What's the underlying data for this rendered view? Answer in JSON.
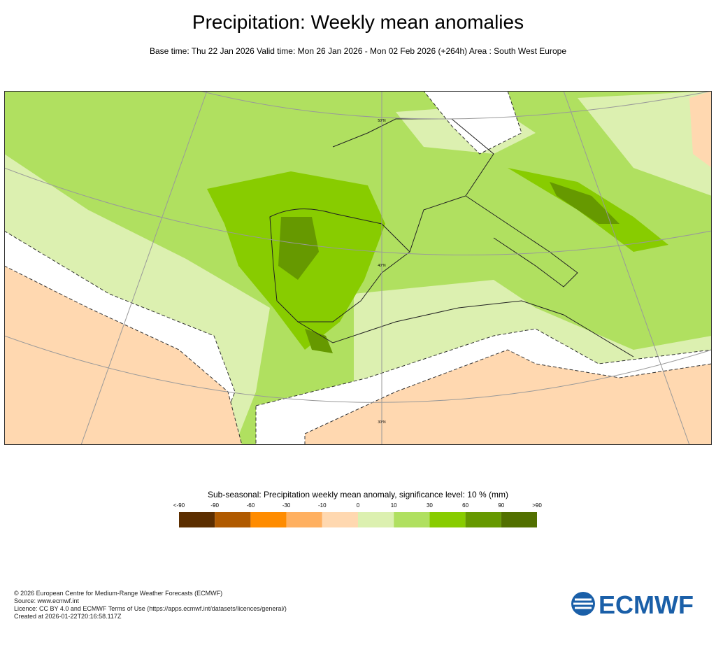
{
  "header": {
    "title": "Precipitation: Weekly mean anomalies",
    "subtitle": "Base time: Thu 22 Jan 2026 Valid time: Mon 26 Jan 2026 - Mon 02 Feb 2026 (+264h) Area : South West Europe"
  },
  "map": {
    "lat_labels": [
      "50°N",
      "40°N",
      "30°N"
    ]
  },
  "legend": {
    "title": "Sub-seasonal: Precipitation weekly mean anomaly, significance level: 10 % (mm)",
    "labels": [
      "<-90",
      "-90",
      "-60",
      "-30",
      "-10",
      "0",
      "10",
      "30",
      "60",
      "90",
      ">90"
    ],
    "colors": [
      "#5c2e00",
      "#b05a00",
      "#ff8c00",
      "#ffb060",
      "#ffd8b0",
      "#dcf0b0",
      "#b0e060",
      "#88cc00",
      "#669900",
      "#527000"
    ]
  },
  "footer": {
    "lines": [
      "© 2026 European Centre for Medium-Range Weather Forecasts (ECMWF)",
      "Source: www.ecmwf.int",
      "Licence: CC BY 4.0 and ECMWF Terms of Use (https://apps.ecmwf.int/datasets/licences/general/)",
      "Created at 2026-01-22T20:16:58.117Z"
    ]
  },
  "logo": "ECMWF"
}
